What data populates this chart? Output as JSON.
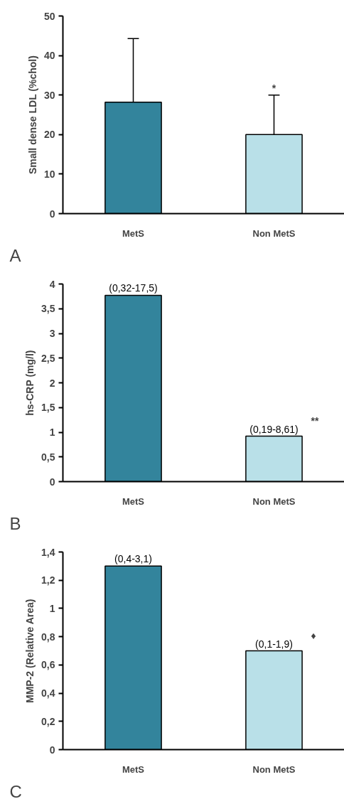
{
  "chart_data": [
    {
      "type": "bar",
      "ylabel": "Small dense LDL (%chol)",
      "categories": [
        "MetS",
        "Non MetS"
      ],
      "values": [
        28.2,
        20.0
      ],
      "colors": [
        "#33849c",
        "#b9e0e8"
      ],
      "errors": [
        [
          28.2,
          44.3
        ],
        [
          20.0,
          30.0
        ]
      ],
      "ylim": [
        0,
        50
      ],
      "yticks": [
        0,
        10,
        20,
        30,
        40,
        50
      ],
      "grid": false,
      "annotations": [
        "A",
        "*"
      ]
    },
    {
      "type": "bar",
      "ylabel": "hs-CRP (mg/l)",
      "categories": [
        "MetS",
        "Non MetS"
      ],
      "values": [
        3.77,
        0.92
      ],
      "colors": [
        "#33849c",
        "#b9e0e8"
      ],
      "value_labels": [
        "(0,32-17,5)",
        "(0,19-8,61)"
      ],
      "ylim": [
        0,
        4
      ],
      "yticks": [
        0,
        {
          "value": 0.5,
          "label": "0,5"
        },
        1,
        {
          "value": 1.5,
          "label": "1,5"
        },
        2,
        {
          "value": 2.5,
          "label": "2,5"
        },
        3,
        {
          "value": 3.5,
          "label": "3,5"
        },
        4
      ],
      "grid": false,
      "annotations": [
        "B",
        "**"
      ]
    },
    {
      "type": "bar",
      "ylabel": "MMP-2 (Relative Area)",
      "categories": [
        "MetS",
        "Non MetS"
      ],
      "values": [
        1.3,
        0.7
      ],
      "colors": [
        "#33849c",
        "#b9e0e8"
      ],
      "value_labels": [
        "(0,4-3,1)",
        "(0,1-1,9)"
      ],
      "ylim": [
        0,
        1.4
      ],
      "yticks": [
        0,
        {
          "value": 0.2,
          "label": "0,2"
        },
        {
          "value": 0.4,
          "label": "0,4"
        },
        {
          "value": 0.6,
          "label": "0,6"
        },
        {
          "value": 0.8,
          "label": "0,8"
        },
        1,
        {
          "value": 1.2,
          "label": "1,2"
        },
        {
          "value": 1.4,
          "label": "1,4"
        }
      ],
      "grid": false,
      "annotations": [
        "C",
        "♦"
      ]
    }
  ]
}
